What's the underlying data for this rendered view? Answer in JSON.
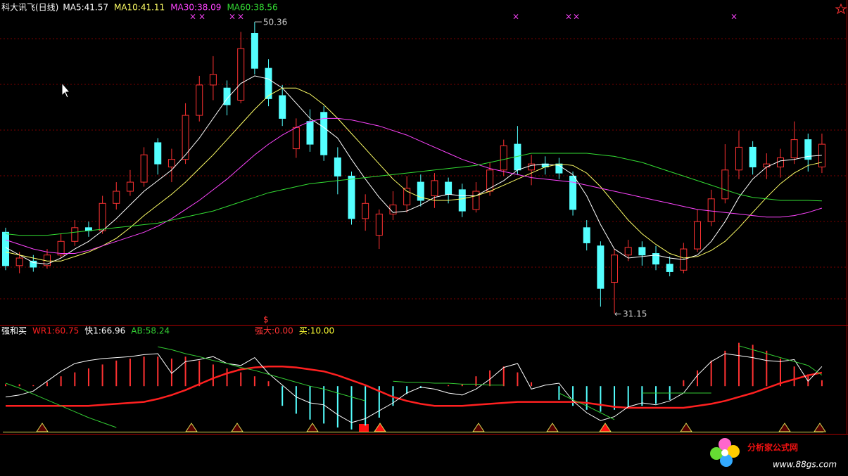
{
  "chart_data": [
    {
      "type": "candlestick",
      "title": "科大讯飞(日线)",
      "up_color": "#ff3232",
      "down_color": "#54ffff",
      "ylim": [
        30.4,
        51.8
      ],
      "high_annotation": "50.36",
      "low_annotation": "31.15",
      "ohlc": [
        [
          36.5,
          36.8,
          34.0,
          34.3
        ],
        [
          34.3,
          35.2,
          33.8,
          34.8
        ],
        [
          34.6,
          35.0,
          33.9,
          34.2
        ],
        [
          34.3,
          35.4,
          34.1,
          35.0
        ],
        [
          35.0,
          36.4,
          34.8,
          35.9
        ],
        [
          35.9,
          37.3,
          35.6,
          36.8
        ],
        [
          36.8,
          37.2,
          36.2,
          36.6
        ],
        [
          36.6,
          38.9,
          36.4,
          38.4
        ],
        [
          38.4,
          39.8,
          38.0,
          39.2
        ],
        [
          39.2,
          40.6,
          38.9,
          39.8
        ],
        [
          39.8,
          42.1,
          39.5,
          41.6
        ],
        [
          42.4,
          42.7,
          40.3,
          41.0
        ],
        [
          40.8,
          42.0,
          39.8,
          41.3
        ],
        [
          41.3,
          45.0,
          41.0,
          44.2
        ],
        [
          44.2,
          46.8,
          43.8,
          46.2
        ],
        [
          46.2,
          48.1,
          45.2,
          46.9
        ],
        [
          46.0,
          46.5,
          44.2,
          44.9
        ],
        [
          45.2,
          49.7,
          45.0,
          48.6
        ],
        [
          49.6,
          50.36,
          46.9,
          47.3
        ],
        [
          47.3,
          47.9,
          44.8,
          45.3
        ],
        [
          45.5,
          46.2,
          43.5,
          44.0
        ],
        [
          42.0,
          44.0,
          41.4,
          43.4
        ],
        [
          43.8,
          44.6,
          41.8,
          42.3
        ],
        [
          44.4,
          44.8,
          41.2,
          41.6
        ],
        [
          41.4,
          42.1,
          39.0,
          40.2
        ],
        [
          40.2,
          40.5,
          37.0,
          37.4
        ],
        [
          37.4,
          39.0,
          36.6,
          38.4
        ],
        [
          36.3,
          38.0,
          35.4,
          37.7
        ],
        [
          37.7,
          39.2,
          37.3,
          38.3
        ],
        [
          38.3,
          40.2,
          37.8,
          39.4
        ],
        [
          39.8,
          40.3,
          38.2,
          38.6
        ],
        [
          38.9,
          40.4,
          38.1,
          39.9
        ],
        [
          39.8,
          40.1,
          38.4,
          39.0
        ],
        [
          39.3,
          39.7,
          37.5,
          37.9
        ],
        [
          38.0,
          39.8,
          37.8,
          39.2
        ],
        [
          39.2,
          41.1,
          38.9,
          40.6
        ],
        [
          40.6,
          42.6,
          40.2,
          42.2
        ],
        [
          42.3,
          43.5,
          40.3,
          40.6
        ],
        [
          40.6,
          41.6,
          39.6,
          41.0
        ],
        [
          41.0,
          41.5,
          40.3,
          40.8
        ],
        [
          41.0,
          41.4,
          40.0,
          40.4
        ],
        [
          40.2,
          40.5,
          37.6,
          38.0
        ],
        [
          36.8,
          37.3,
          35.3,
          35.8
        ],
        [
          35.6,
          35.9,
          31.6,
          32.8
        ],
        [
          33.2,
          35.4,
          31.15,
          35.0
        ],
        [
          35.0,
          36.0,
          34.6,
          35.5
        ],
        [
          35.5,
          35.9,
          34.3,
          35.0
        ],
        [
          35.1,
          35.6,
          34.0,
          34.4
        ],
        [
          34.4,
          34.9,
          33.6,
          33.9
        ],
        [
          34.0,
          35.8,
          33.8,
          35.4
        ],
        [
          35.4,
          38.0,
          35.2,
          37.2
        ],
        [
          37.2,
          39.3,
          36.9,
          38.7
        ],
        [
          38.7,
          42.3,
          38.4,
          40.6
        ],
        [
          40.6,
          43.2,
          40.0,
          42.1
        ],
        [
          42.1,
          42.5,
          40.3,
          40.8
        ],
        [
          40.8,
          41.7,
          40.0,
          41.0
        ],
        [
          40.8,
          42.0,
          40.1,
          41.4
        ],
        [
          41.4,
          43.8,
          41.0,
          42.6
        ],
        [
          42.6,
          43.0,
          40.5,
          41.3
        ],
        [
          40.8,
          43.0,
          40.4,
          42.3
        ]
      ],
      "series": [
        {
          "name": "MA5:41.57",
          "color": "#ffffff",
          "values": [
            35.5,
            35.0,
            34.5,
            34.4,
            34.8,
            35.4,
            35.9,
            36.6,
            37.4,
            38.3,
            39.2,
            39.9,
            40.6,
            41.6,
            42.7,
            44.0,
            45.3,
            46.3,
            46.8,
            46.6,
            46.0,
            45.0,
            44.0,
            43.4,
            42.7,
            41.3,
            40.0,
            38.8,
            37.8,
            37.9,
            38.3,
            38.8,
            39.0,
            38.9,
            38.9,
            39.4,
            39.9,
            40.6,
            40.9,
            41.0,
            40.9,
            40.3,
            38.9,
            37.0,
            35.4,
            34.8,
            34.9,
            35.0,
            34.8,
            34.7,
            35.0,
            35.9,
            37.2,
            38.8,
            40.0,
            40.8,
            41.2,
            41.3,
            41.5,
            41.57
          ]
        },
        {
          "name": "MA10:41.11",
          "color": "#ffff66",
          "values": [
            35.2,
            35.0,
            34.8,
            34.6,
            34.6,
            34.9,
            35.2,
            35.6,
            36.1,
            36.8,
            37.6,
            38.3,
            39.0,
            39.8,
            40.7,
            41.6,
            42.6,
            43.6,
            44.6,
            45.5,
            46.0,
            46.0,
            45.6,
            44.9,
            44.0,
            43.0,
            42.0,
            41.0,
            40.0,
            39.2,
            38.8,
            38.6,
            38.6,
            38.7,
            38.9,
            39.2,
            39.6,
            40.0,
            40.4,
            40.8,
            41.0,
            40.9,
            40.4,
            39.5,
            38.4,
            37.3,
            36.4,
            35.7,
            35.1,
            34.8,
            34.9,
            35.3,
            35.9,
            36.8,
            37.8,
            38.8,
            39.7,
            40.4,
            40.9,
            41.11
          ]
        },
        {
          "name": "MA30:38.09",
          "color": "#ff44ff",
          "values": [
            36.0,
            35.7,
            35.4,
            35.2,
            35.1,
            35.1,
            35.3,
            35.6,
            35.9,
            36.2,
            36.5,
            36.9,
            37.4,
            38.0,
            38.6,
            39.3,
            40.0,
            40.8,
            41.6,
            42.3,
            42.9,
            43.4,
            43.8,
            44.0,
            44.0,
            43.9,
            43.7,
            43.5,
            43.2,
            42.9,
            42.5,
            42.1,
            41.7,
            41.3,
            41.0,
            40.7,
            40.5,
            40.3,
            40.1,
            40.0,
            39.9,
            39.8,
            39.6,
            39.4,
            39.2,
            39.0,
            38.8,
            38.6,
            38.4,
            38.2,
            38.0,
            37.9,
            37.8,
            37.7,
            37.6,
            37.5,
            37.5,
            37.6,
            37.8,
            38.09
          ]
        },
        {
          "name": "MA60:38.56",
          "color": "#33dd33",
          "values": [
            36.4,
            36.3,
            36.3,
            36.3,
            36.4,
            36.5,
            36.6,
            36.7,
            36.8,
            36.9,
            37.0,
            37.1,
            37.3,
            37.5,
            37.7,
            37.9,
            38.2,
            38.5,
            38.8,
            39.1,
            39.3,
            39.5,
            39.7,
            39.8,
            39.9,
            40.0,
            40.1,
            40.2,
            40.3,
            40.4,
            40.5,
            40.6,
            40.7,
            40.8,
            40.9,
            41.1,
            41.3,
            41.5,
            41.7,
            41.7,
            41.7,
            41.7,
            41.7,
            41.6,
            41.5,
            41.3,
            41.1,
            40.8,
            40.5,
            40.2,
            39.9,
            39.6,
            39.3,
            39.0,
            38.8,
            38.7,
            38.6,
            38.6,
            38.6,
            38.56
          ]
        }
      ]
    },
    {
      "type": "indicator",
      "title": "强和买",
      "ylim": [
        0,
        100
      ],
      "y2lim": [
        -47,
        53
      ],
      "series": [
        {
          "name": "WR1:60.75",
          "color": "#ff2020",
          "values": [
            27,
            27,
            27,
            27,
            27,
            27,
            27,
            28,
            29,
            30,
            31,
            34,
            38,
            43,
            49,
            55,
            60,
            64,
            66,
            67,
            67,
            66,
            64,
            62,
            58,
            53,
            48,
            42,
            36,
            32,
            29,
            27,
            27,
            27,
            28,
            29,
            30,
            31,
            31,
            31,
            31,
            31,
            30,
            28,
            26,
            25,
            25,
            25,
            25,
            25,
            27,
            29,
            32,
            36,
            40,
            45,
            50,
            54,
            58,
            60.75
          ]
        },
        {
          "name": "快1:66.96",
          "color": "#ffffff",
          "values": [
            36,
            38,
            42,
            52,
            62,
            70,
            73,
            75,
            76,
            77,
            79,
            80,
            60,
            72,
            74,
            77,
            70,
            68,
            76,
            60,
            48,
            36,
            30,
            28,
            18,
            10,
            14,
            22,
            30,
            40,
            46,
            44,
            40,
            38,
            44,
            54,
            66,
            70,
            44,
            48,
            50,
            32,
            20,
            12,
            16,
            26,
            30,
            28,
            32,
            40,
            58,
            72,
            80,
            78,
            76,
            73,
            72,
            74,
            52,
            66.96
          ]
        },
        {
          "name": "AB:58.24",
          "color": "#33cc33",
          "values": [
            50,
            45,
            39,
            33,
            27,
            21,
            15,
            10,
            5,
            null,
            null,
            87,
            84,
            80,
            77,
            73,
            70,
            66,
            63,
            59,
            55,
            51,
            47,
            44,
            40,
            36,
            32,
            null,
            52,
            51,
            51,
            50,
            50,
            49,
            49,
            48,
            48,
            null,
            null,
            null,
            40,
            33,
            27,
            20,
            13,
            null,
            40,
            40,
            40,
            40,
            40,
            40,
            null,
            88,
            84,
            80,
            76,
            72,
            68,
            58.24
          ]
        }
      ],
      "bars": {
        "axis": "y2",
        "up_color": "#ff3232",
        "down_color": "#54ffff",
        "values": [
          2,
          2,
          1,
          4,
          10,
          14,
          18,
          22,
          26,
          28,
          30,
          30,
          28,
          30,
          26,
          22,
          18,
          14,
          10,
          5,
          -20,
          -28,
          -34,
          -38,
          -42,
          -44,
          -40,
          -32,
          -20,
          -8,
          -2,
          0,
          1,
          2,
          10,
          16,
          20,
          14,
          4,
          0,
          -14,
          -20,
          -24,
          -26,
          -24,
          -22,
          -20,
          -18,
          -14,
          6,
          16,
          26,
          36,
          44,
          42,
          36,
          28,
          20,
          12,
          6
        ]
      },
      "annotations": [
        {
          "text": "强大:0.00",
          "color": "#ff3333"
        },
        {
          "text": "买:10.00",
          "color": "#ffff33"
        }
      ]
    }
  ],
  "watermark": {
    "title": "分析家公式网",
    "url": "www.88gs.com"
  }
}
